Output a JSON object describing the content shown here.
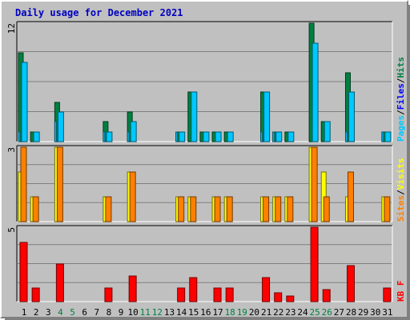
{
  "title": "Daily usage for December 2021",
  "colors": {
    "hits": "#008040",
    "files": "#00c8ff",
    "pages": "#00c8ff",
    "visits": "#ffff00",
    "sites": "#ff8000",
    "kbytes": "#ff0000",
    "background": "#c0c0c0",
    "title": "#0000c0",
    "weekend_label": "#008040"
  },
  "chart_data": [
    {
      "type": "bar",
      "panel": "hits-files-pages",
      "legend": [
        "Pages",
        "/",
        "Files",
        "/",
        "Hits"
      ],
      "ylim": [
        0,
        12
      ],
      "ymax_label": "12",
      "grid": true,
      "categories": [
        "1",
        "2",
        "3",
        "4",
        "5",
        "6",
        "7",
        "8",
        "9",
        "10",
        "11",
        "12",
        "13",
        "14",
        "15",
        "16",
        "17",
        "18",
        "19",
        "20",
        "21",
        "22",
        "23",
        "24",
        "25",
        "26",
        "27",
        "28",
        "29",
        "30",
        "31"
      ],
      "series": [
        {
          "name": "Hits",
          "values": [
            9,
            1,
            0,
            4,
            0,
            0,
            0,
            2,
            0,
            3,
            0,
            0,
            0,
            1,
            5,
            1,
            1,
            1,
            0,
            0,
            5,
            1,
            1,
            0,
            12,
            2,
            0,
            7,
            0,
            0,
            1
          ]
        },
        {
          "name": "Files",
          "values": [
            8,
            1,
            0,
            3,
            0,
            0,
            0,
            1,
            0,
            2,
            0,
            0,
            0,
            1,
            5,
            1,
            1,
            1,
            0,
            0,
            5,
            1,
            1,
            0,
            10,
            2,
            0,
            5,
            0,
            0,
            1
          ]
        },
        {
          "name": "Pages",
          "values": [
            1,
            0,
            0,
            2,
            0,
            0,
            0,
            1,
            0,
            1,
            0,
            0,
            0,
            1,
            0,
            0,
            0,
            0,
            0,
            0,
            1,
            1,
            0,
            0,
            0,
            0,
            0,
            1,
            0,
            0,
            1
          ]
        }
      ]
    },
    {
      "type": "bar",
      "panel": "visits-sites",
      "legend": [
        "Sites",
        "/",
        "Visits"
      ],
      "ylim": [
        0,
        3
      ],
      "ymax_label": "3",
      "grid": true,
      "series": [
        {
          "name": "Visits",
          "values": [
            2,
            1,
            0,
            3,
            0,
            0,
            0,
            1,
            0,
            2,
            0,
            0,
            0,
            1,
            1,
            0,
            1,
            1,
            0,
            0,
            1,
            1,
            1,
            0,
            3,
            2,
            0,
            1,
            0,
            0,
            1
          ]
        },
        {
          "name": "Sites",
          "values": [
            3,
            1,
            0,
            3,
            0,
            0,
            0,
            1,
            0,
            2,
            0,
            0,
            0,
            1,
            1,
            0,
            1,
            1,
            0,
            0,
            1,
            1,
            1,
            0,
            3,
            1,
            0,
            2,
            0,
            0,
            1
          ]
        }
      ]
    },
    {
      "type": "bar",
      "panel": "kbytes",
      "legend": [
        "KB F"
      ],
      "ylim": [
        0,
        5
      ],
      "ymax_label": "5",
      "grid": true,
      "series": [
        {
          "name": "KB F",
          "values": [
            4.0,
            0.9,
            0,
            2.5,
            0,
            0,
            0,
            0.9,
            0,
            1.7,
            0,
            0,
            0,
            0.9,
            1.6,
            0,
            0.9,
            0.9,
            0,
            0,
            1.6,
            0.6,
            0.4,
            0,
            5.0,
            0.8,
            0,
            2.4,
            0,
            0,
            0.9
          ]
        }
      ]
    }
  ],
  "x_labels": [
    {
      "text": "1",
      "weekend": false
    },
    {
      "text": "2",
      "weekend": false
    },
    {
      "text": "3",
      "weekend": false
    },
    {
      "text": "4",
      "weekend": true
    },
    {
      "text": "5",
      "weekend": true
    },
    {
      "text": "6",
      "weekend": false
    },
    {
      "text": "7",
      "weekend": false
    },
    {
      "text": "8",
      "weekend": false
    },
    {
      "text": "9",
      "weekend": false
    },
    {
      "text": "10",
      "weekend": false
    },
    {
      "text": "11",
      "weekend": true
    },
    {
      "text": "12",
      "weekend": true
    },
    {
      "text": "13",
      "weekend": false
    },
    {
      "text": "14",
      "weekend": false
    },
    {
      "text": "15",
      "weekend": false
    },
    {
      "text": "16",
      "weekend": false
    },
    {
      "text": "17",
      "weekend": false
    },
    {
      "text": "18",
      "weekend": true
    },
    {
      "text": "19",
      "weekend": true
    },
    {
      "text": "20",
      "weekend": false
    },
    {
      "text": "21",
      "weekend": false
    },
    {
      "text": "22",
      "weekend": false
    },
    {
      "text": "23",
      "weekend": false
    },
    {
      "text": "24",
      "weekend": false
    },
    {
      "text": "25",
      "weekend": true
    },
    {
      "text": "26",
      "weekend": true
    },
    {
      "text": "27",
      "weekend": false
    },
    {
      "text": "28",
      "weekend": false
    },
    {
      "text": "29",
      "weekend": false
    },
    {
      "text": "30",
      "weekend": false
    },
    {
      "text": "31",
      "weekend": false
    }
  ]
}
